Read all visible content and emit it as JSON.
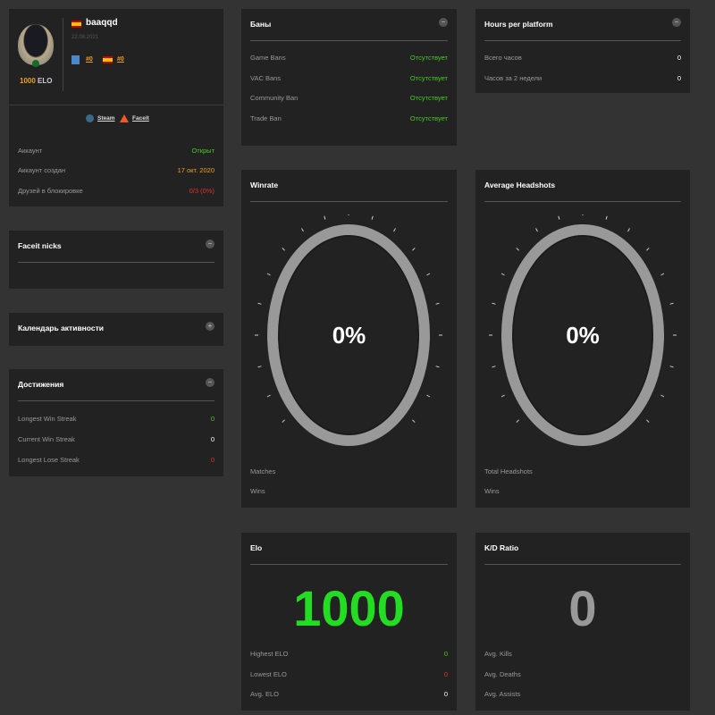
{
  "profile": {
    "username": "baaqqd",
    "date": "22.08.2021",
    "elo": "1000",
    "elo_label": "ELO",
    "rank1": "#0",
    "rank2": "#0",
    "links": [
      "Steam",
      "Faceit"
    ],
    "rows": [
      {
        "label": "Аккаунт",
        "value": "Открыт",
        "color": "#44cc22"
      },
      {
        "label": "Аккаунт создан",
        "value": "17 окт. 2020",
        "color": "#f0a020"
      },
      {
        "label": "Друзей в блокировке",
        "value": "0/3 (0%)",
        "color": "#e03030"
      }
    ]
  },
  "faceit_nicks": {
    "title": "Faceit nicks"
  },
  "calendar": {
    "title": "Календарь активности"
  },
  "achievements": {
    "title": "Достижения",
    "rows": [
      {
        "label": "Longest Win Streak",
        "value": "0"
      },
      {
        "label": "Current Win Streak",
        "value": "0"
      },
      {
        "label": "Longest Lose Streak",
        "value": "0"
      }
    ]
  },
  "bans": {
    "title": "Баны",
    "rows": [
      {
        "label": "Game Bans",
        "value": "Отсутствует"
      },
      {
        "label": "VAC Bans",
        "value": "Отсутствует"
      },
      {
        "label": "Community Ban",
        "value": "Отсутствует"
      },
      {
        "label": "Trade Ban",
        "value": "Отсутствует"
      }
    ]
  },
  "hours": {
    "title": "Hours per platform",
    "rows": [
      {
        "label": "Всего часов",
        "value": "0"
      },
      {
        "label": "Часов за 2 недели",
        "value": "0"
      }
    ]
  },
  "winrate": {
    "title": "Winrate",
    "percent": "0%",
    "rows": [
      "Matches",
      "Wins"
    ]
  },
  "headshots": {
    "title": "Average Headshots",
    "percent": "0%",
    "rows": [
      "Total Headshots",
      "Wins"
    ]
  },
  "elo": {
    "title": "Elo",
    "value": "1000",
    "rows": [
      {
        "label": "Highest ELO",
        "value": "0"
      },
      {
        "label": "Lowest ELO",
        "value": "0"
      },
      {
        "label": "Avg. ELO",
        "value": "0"
      }
    ]
  },
  "kd": {
    "title": "K/D Ratio",
    "value": "0",
    "rows": [
      "Avg. Kills",
      "Avg. Deaths",
      "Avg. Assists"
    ]
  },
  "colors": {
    "bg": "#333333",
    "panel": "#222222",
    "green": "#44cc22",
    "red": "#e03030",
    "orange": "#f0a020",
    "ring": "#999999"
  }
}
